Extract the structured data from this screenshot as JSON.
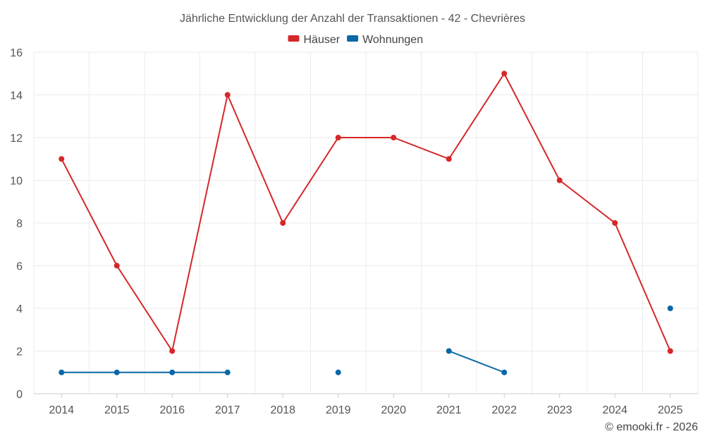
{
  "chart_data": {
    "type": "line",
    "title": "Jährliche Entwicklung der Anzahl der Transaktionen - 42 - Chevrières",
    "xlabel": "",
    "ylabel": "",
    "categories": [
      "2014",
      "2015",
      "2016",
      "2017",
      "2018",
      "2019",
      "2020",
      "2021",
      "2022",
      "2023",
      "2024",
      "2025"
    ],
    "ylim": [
      0,
      16
    ],
    "yticks": [
      0,
      2,
      4,
      6,
      8,
      10,
      12,
      14,
      16
    ],
    "grid": true,
    "legend_position": "top-center",
    "series": [
      {
        "name": "Häuser",
        "color": "#d62728",
        "values": [
          11,
          6,
          2,
          14,
          8,
          12,
          12,
          11,
          15,
          10,
          8,
          2
        ]
      },
      {
        "name": "Wohnungen",
        "color": "#0868a8",
        "values": [
          1,
          1,
          1,
          1,
          null,
          1,
          null,
          2,
          1,
          null,
          null,
          4
        ]
      }
    ]
  },
  "credit": "© emooki.fr - 2026"
}
